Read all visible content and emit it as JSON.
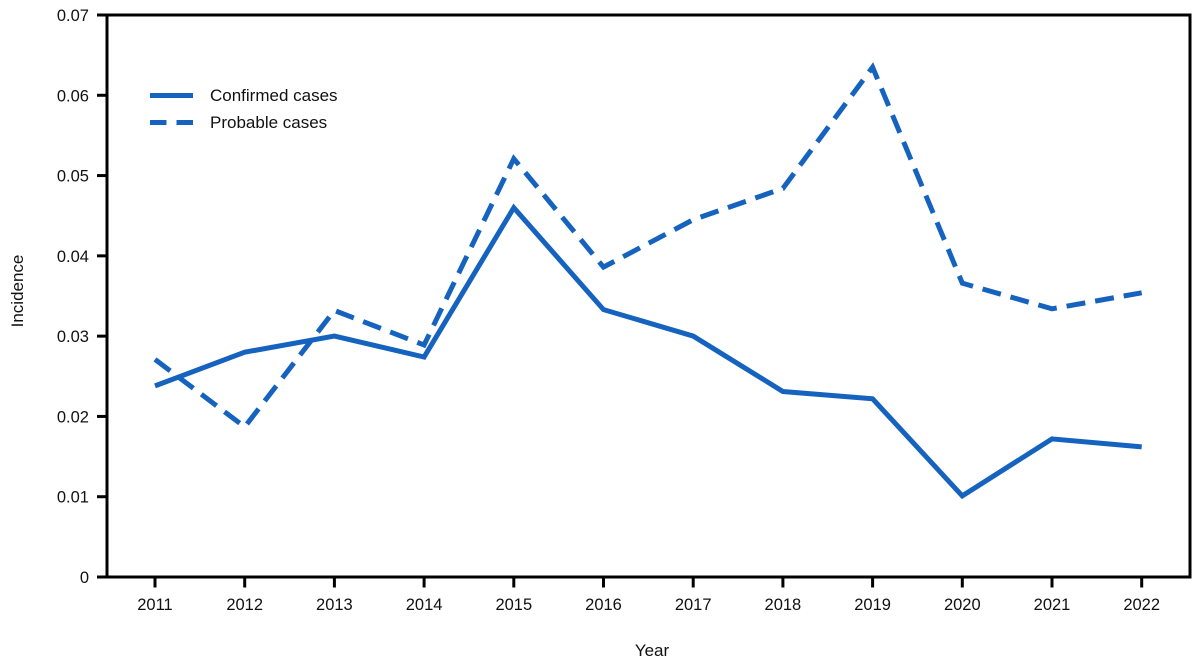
{
  "figure": {
    "y_axis_label": "Incidence",
    "x_axis_label": "Year",
    "line_color": "#1563be",
    "axis_color": "#000000",
    "text_color": "#111111",
    "background_color": "#ffffff"
  },
  "chart_data": {
    "type": "line",
    "title": "",
    "xlabel": "Year",
    "ylabel": "Incidence",
    "categories": [
      "2011",
      "2012",
      "2013",
      "2014",
      "2015",
      "2016",
      "2017",
      "2018",
      "2019",
      "2020",
      "2021",
      "2022"
    ],
    "series": [
      {
        "name": "Confirmed cases",
        "style": "solid",
        "color": "#1563be",
        "values": [
          0.0238,
          0.028,
          0.03,
          0.0274,
          0.046,
          0.0333,
          0.03,
          0.0231,
          0.0222,
          0.0101,
          0.0172,
          0.0162
        ]
      },
      {
        "name": "Probable cases",
        "style": "dashed",
        "color": "#1563be",
        "values": [
          0.0271,
          0.0187,
          0.0332,
          0.0289,
          0.0521,
          0.0386,
          0.0445,
          0.0484,
          0.0635,
          0.0366,
          0.0334,
          0.0354
        ]
      }
    ],
    "ylim": [
      0,
      0.07
    ],
    "yticks": [
      0,
      0.01,
      0.02,
      0.03,
      0.04,
      0.05,
      0.06,
      0.07
    ],
    "ytick_labels": [
      "0",
      "0.01",
      "0.02",
      "0.03",
      "0.04",
      "0.05",
      "0.06",
      "0.07"
    ],
    "grid": false,
    "legend_position": "upper-left-inside",
    "legend_entries": [
      "Confirmed cases",
      "Probable cases"
    ]
  }
}
